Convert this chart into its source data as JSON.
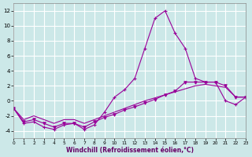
{
  "xlabel": "Windchill (Refroidissement éolien,°C)",
  "bg_color": "#cce8e8",
  "grid_color": "#ffffff",
  "line_color": "#990099",
  "xlim": [
    0,
    23
  ],
  "ylim": [
    -5,
    13
  ],
  "xticks": [
    0,
    1,
    2,
    3,
    4,
    5,
    6,
    7,
    8,
    9,
    10,
    11,
    12,
    13,
    14,
    15,
    16,
    17,
    18,
    19,
    20,
    21,
    22,
    23
  ],
  "yticks": [
    -4,
    -2,
    0,
    2,
    4,
    6,
    8,
    10,
    12
  ],
  "series1_x": [
    0,
    1,
    2,
    3,
    4,
    5,
    6,
    7,
    8,
    9,
    10,
    11,
    12,
    13,
    14,
    15,
    16,
    17,
    18,
    19,
    20,
    21,
    22,
    23
  ],
  "series1_y": [
    -1,
    -3,
    -2.8,
    -3.5,
    -3.8,
    -3.2,
    -3,
    -3.8,
    -3.2,
    -1.5,
    0.5,
    1.5,
    3,
    7,
    11,
    12,
    9,
    7,
    3,
    2.5,
    2.5,
    0,
    -0.5,
    0.5
  ],
  "series2_x": [
    0,
    1,
    2,
    3,
    4,
    5,
    6,
    7,
    8,
    9,
    10,
    11,
    12,
    13,
    14,
    15,
    16,
    17,
    18,
    19,
    20,
    21,
    22,
    23
  ],
  "series2_y": [
    -1,
    -2.8,
    -2.5,
    -3,
    -3.5,
    -3,
    -3,
    -3.5,
    -2.8,
    -2.2,
    -1.8,
    -1.2,
    -0.8,
    -0.3,
    0.2,
    0.8,
    1.3,
    2.5,
    2.5,
    2.5,
    2.5,
    2,
    0.5,
    0.5
  ],
  "series3_x": [
    0,
    1,
    2,
    3,
    4,
    5,
    6,
    7,
    8,
    9,
    10,
    11,
    12,
    13,
    14,
    15,
    16,
    17,
    18,
    19,
    20,
    21,
    22,
    23
  ],
  "series3_y": [
    -1,
    -2.5,
    -2.0,
    -2.5,
    -3,
    -2.5,
    -2.5,
    -3,
    -2.5,
    -2,
    -1.5,
    -1.0,
    -0.5,
    -0.0,
    0.4,
    0.8,
    1.2,
    1.6,
    2.0,
    2.2,
    2.0,
    1.8,
    0.5,
    0.5
  ]
}
